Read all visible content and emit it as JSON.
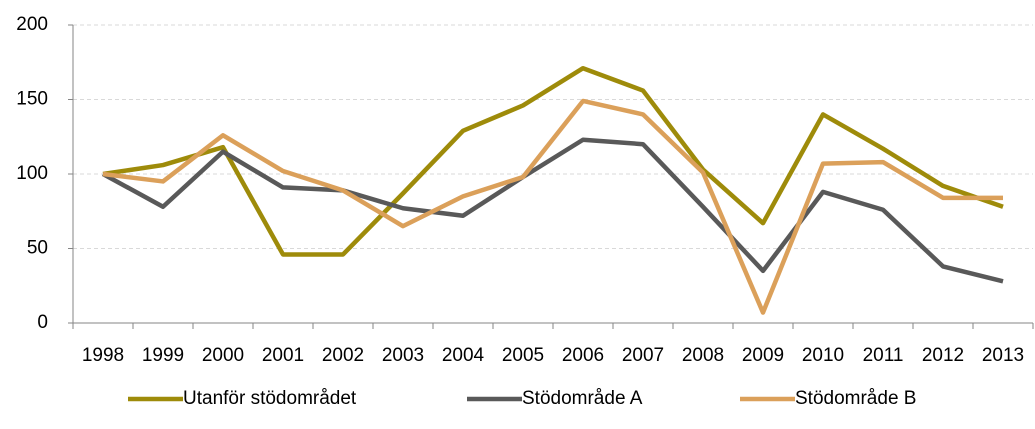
{
  "chart_data": {
    "type": "line",
    "categories": [
      "1998",
      "1999",
      "2000",
      "2001",
      "2002",
      "2003",
      "2004",
      "2005",
      "2006",
      "2007",
      "2008",
      "2009",
      "2010",
      "2011",
      "2012",
      "2013"
    ],
    "series": [
      {
        "name": "Utanför stödområdet",
        "color": "#9e8b0a",
        "values": [
          100,
          106,
          118,
          46,
          46,
          87,
          129,
          146,
          171,
          156,
          103,
          67,
          140,
          117,
          92,
          78
        ]
      },
      {
        "name": "Stödområde A",
        "color": "#595959",
        "values": [
          100,
          78,
          115,
          91,
          89,
          77,
          72,
          98,
          123,
          120,
          78,
          35,
          88,
          76,
          38,
          28
        ]
      },
      {
        "name": "Stödområde B",
        "color": "#dba05a",
        "values": [
          100,
          95,
          126,
          102,
          89,
          65,
          85,
          98,
          149,
          140,
          101,
          7,
          107,
          108,
          84,
          84
        ]
      }
    ],
    "ylim": [
      0,
      200
    ],
    "yticks": [
      0,
      50,
      100,
      150,
      200
    ],
    "grid": true,
    "legend": "bottom"
  }
}
